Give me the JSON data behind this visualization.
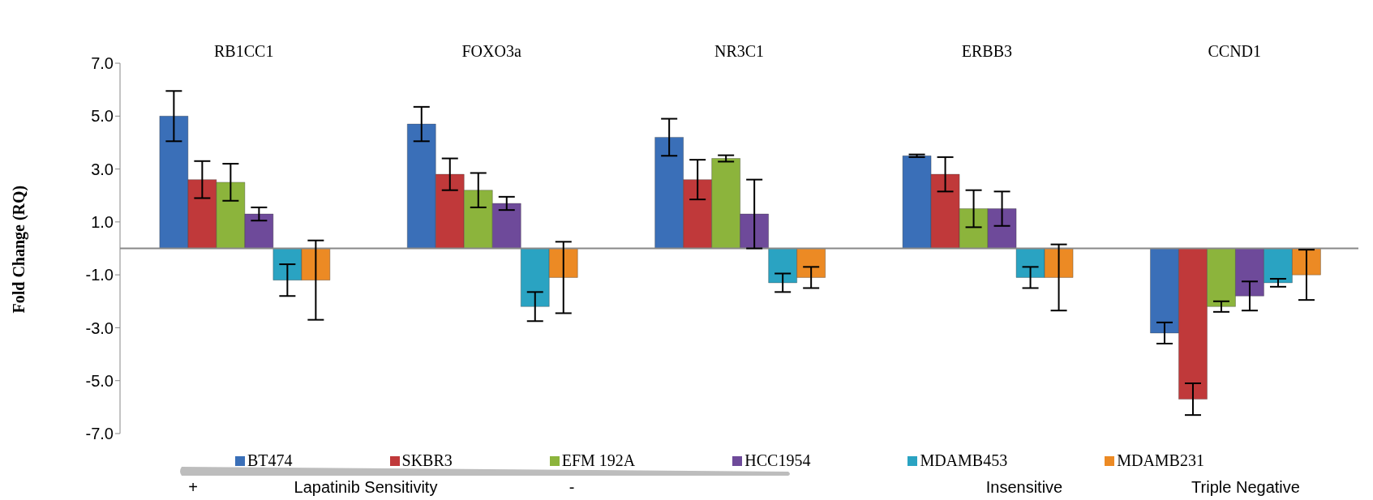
{
  "chart_data": {
    "type": "bar",
    "ylabel": "Fold Change (RQ)",
    "categories": [
      "RB1CC1",
      "FOXO3a",
      "NR3C1",
      "ERBB3",
      "CCND1"
    ],
    "series": [
      {
        "name": "BT474",
        "color": "#3a6fb8",
        "values": [
          5.0,
          4.7,
          4.2,
          3.5,
          -3.2
        ],
        "errors": [
          0.95,
          0.65,
          0.7,
          0.05,
          0.4
        ]
      },
      {
        "name": "SKBR3",
        "color": "#c0393a",
        "values": [
          2.6,
          2.8,
          2.6,
          2.8,
          -5.7
        ],
        "errors": [
          0.7,
          0.6,
          0.75,
          0.65,
          0.6
        ]
      },
      {
        "name": "EFM 192A",
        "color": "#8cb43c",
        "values": [
          2.5,
          2.2,
          3.4,
          1.5,
          -2.2
        ],
        "errors": [
          0.7,
          0.65,
          0.12,
          0.7,
          0.2
        ]
      },
      {
        "name": "HCC1954",
        "color": "#6e4a9a",
        "values": [
          1.3,
          1.7,
          1.3,
          1.5,
          -1.8
        ],
        "errors": [
          0.25,
          0.25,
          1.3,
          0.65,
          0.55
        ]
      },
      {
        "name": "MDAMB453",
        "color": "#2aa3c2",
        "values": [
          -1.2,
          -2.2,
          -1.3,
          -1.1,
          -1.3
        ],
        "errors": [
          0.6,
          0.55,
          0.35,
          0.4,
          0.15
        ]
      },
      {
        "name": "MDAMB231",
        "color": "#ec8a24",
        "values": [
          -1.2,
          -1.1,
          -1.1,
          -1.1,
          -1.0
        ],
        "errors": [
          1.5,
          1.35,
          0.4,
          1.25,
          0.95
        ]
      }
    ],
    "ylim": [
      -7,
      7
    ],
    "yticks": [
      {
        "value": -7,
        "label": "-7.0"
      },
      {
        "value": -5,
        "label": "-5.0"
      },
      {
        "value": -3,
        "label": "-3.0"
      },
      {
        "value": -1,
        "label": "-1.0"
      },
      {
        "value": 1,
        "label": "1.0"
      },
      {
        "value": 3,
        "label": "3.0"
      },
      {
        "value": 5,
        "label": "5.0"
      },
      {
        "value": 7,
        "label": "7.0"
      }
    ],
    "grid": false,
    "legend": "bottom",
    "annotations": [
      "+",
      "Lapatinib Sensitivity",
      "-",
      "Insensitive",
      "Triple Negative"
    ]
  }
}
